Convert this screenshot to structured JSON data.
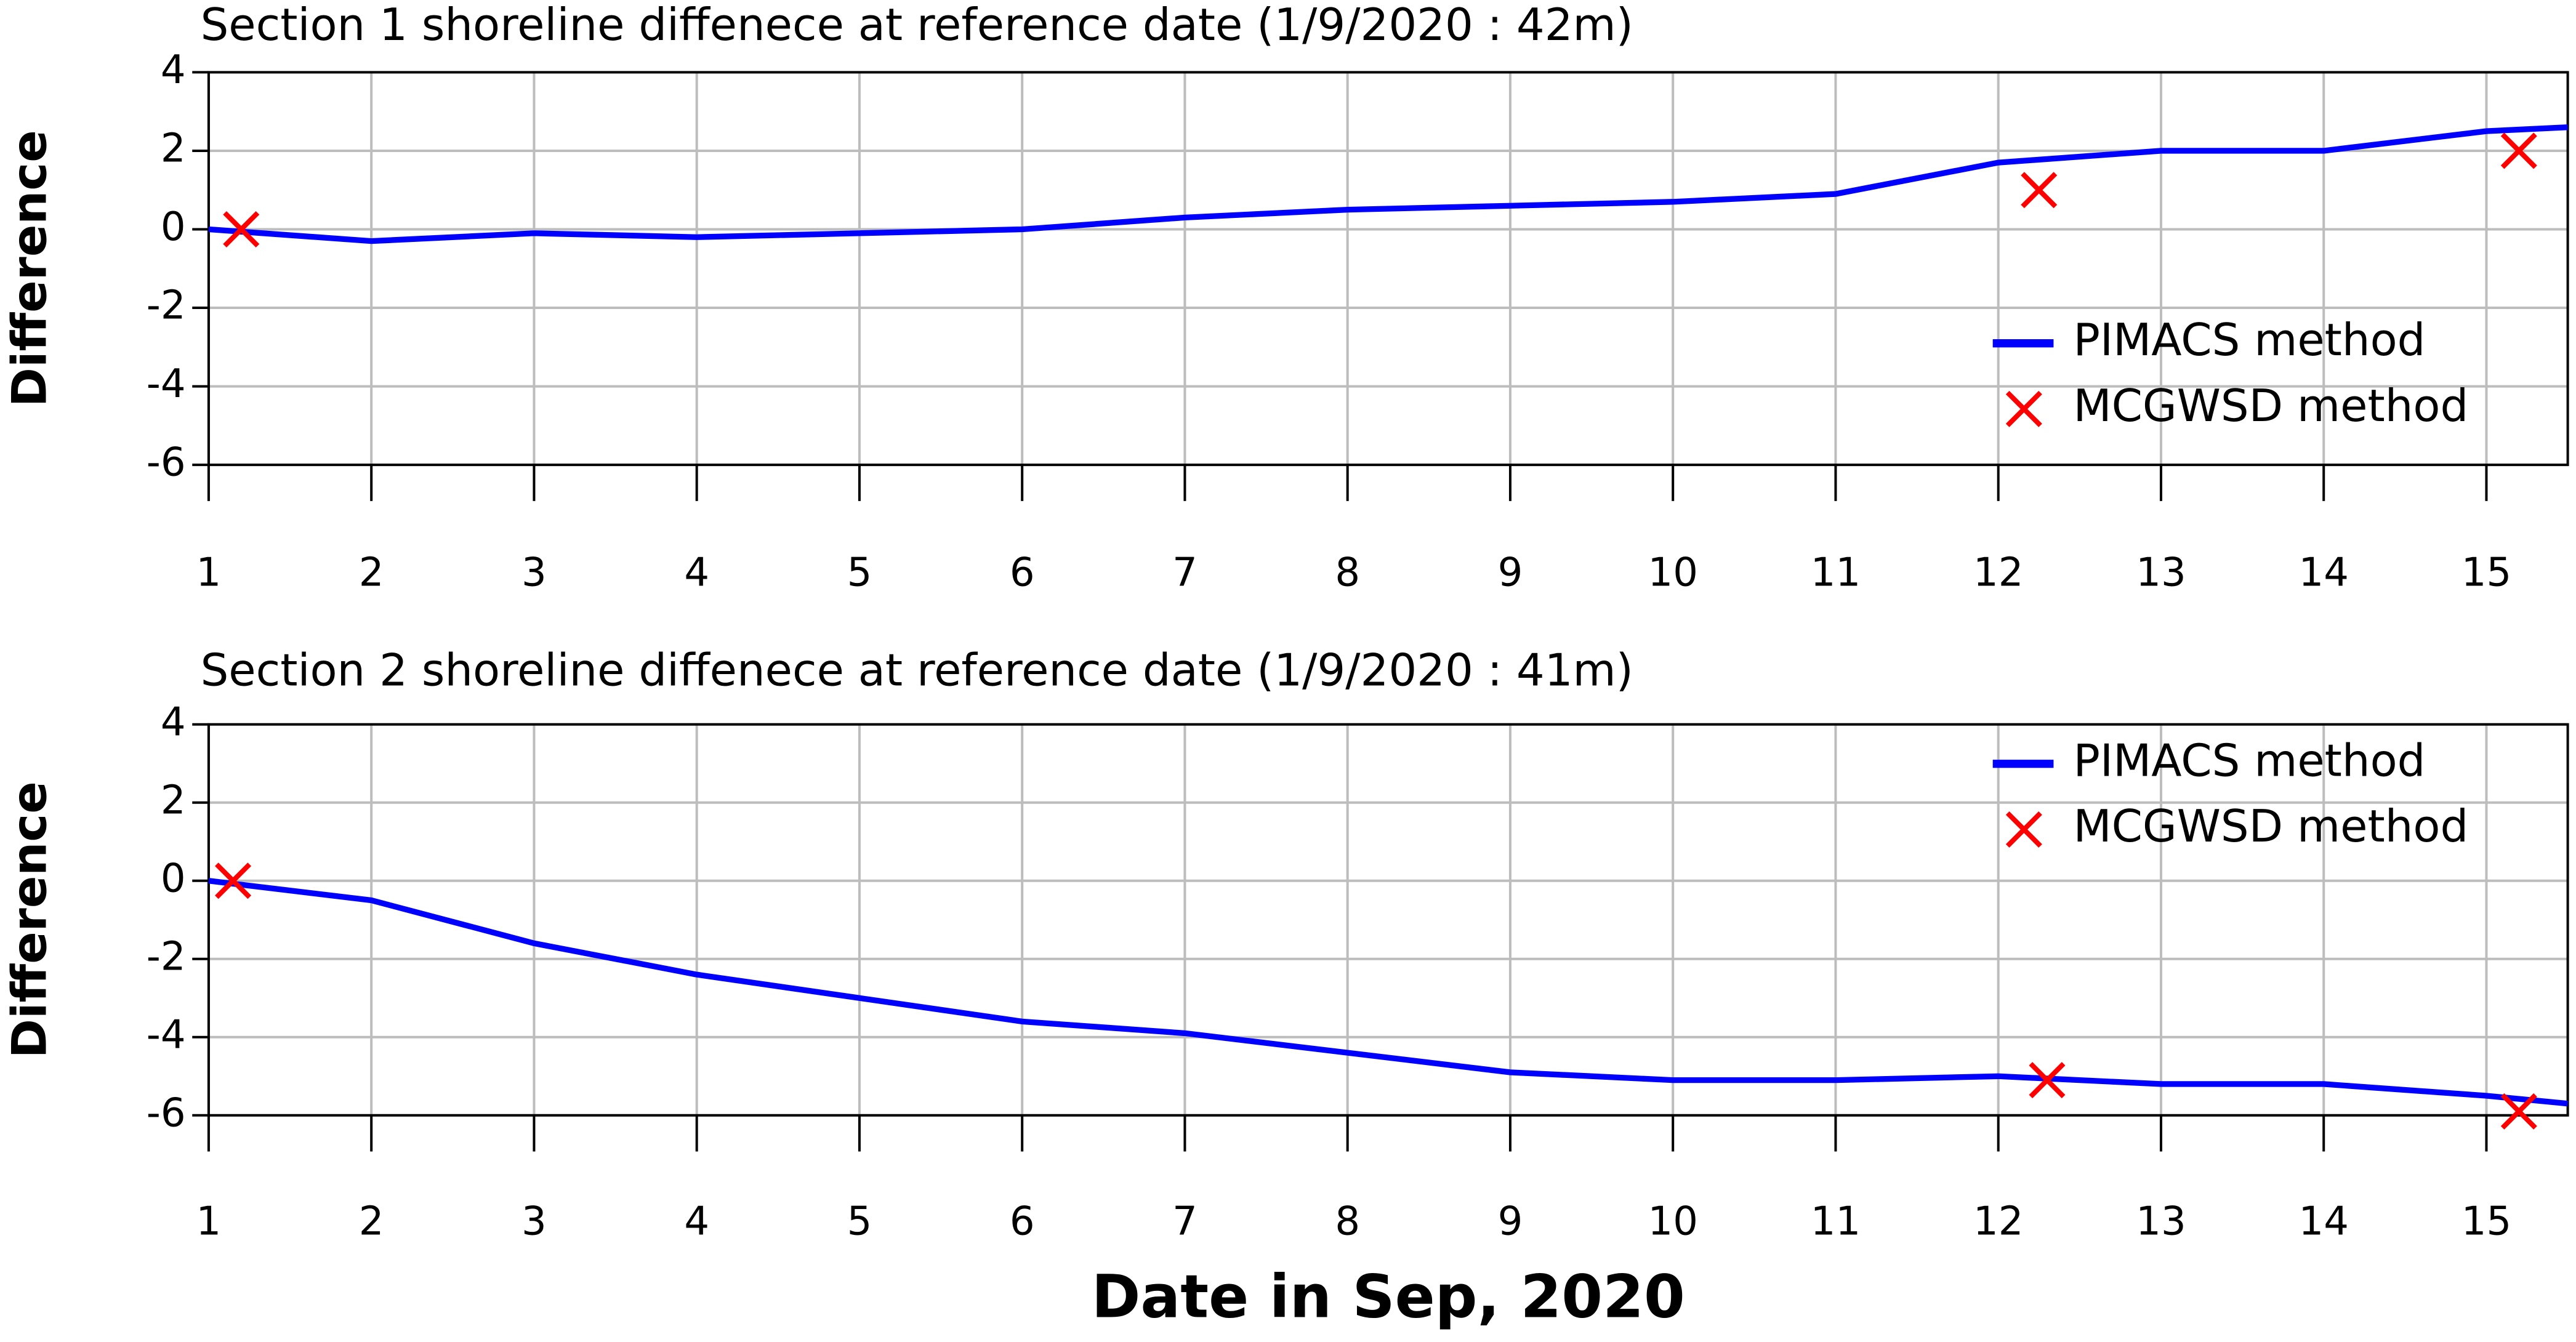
{
  "chart_data": [
    {
      "type": "line",
      "title": "Section 1 shoreline diffenece at reference date (1/9/2020 : 42m)",
      "y_label": "Difference",
      "xlim": [
        1,
        15.5
      ],
      "ylim": [
        -6,
        4
      ],
      "xticks": [
        1,
        2,
        3,
        4,
        5,
        6,
        7,
        8,
        9,
        10,
        11,
        12,
        13,
        14,
        15
      ],
      "yticks": [
        -6,
        -4,
        -2,
        0,
        2,
        4
      ],
      "grid": true,
      "legend": "lower right",
      "series": [
        {
          "name": "PIMACS method",
          "color": "#0000ff",
          "type": "line",
          "x": [
            1,
            2,
            3,
            4,
            5,
            6,
            7,
            8,
            9,
            10,
            11,
            12,
            13,
            14,
            15,
            15.5
          ],
          "values": [
            0,
            -0.3,
            -0.1,
            -0.2,
            -0.1,
            0,
            0.3,
            0.5,
            0.6,
            0.7,
            0.9,
            1.7,
            2.0,
            2.0,
            2.5,
            2.6
          ]
        },
        {
          "name": "MCGWSD method",
          "color": "#ff0000",
          "type": "scatter",
          "x": [
            1.2,
            12.25,
            15.2
          ],
          "values": [
            0,
            1,
            2
          ]
        }
      ]
    },
    {
      "type": "line",
      "title": "Section 2 shoreline diffenece at reference date (1/9/2020 : 41m)",
      "y_label": "Difference",
      "x_label": "Date in Sep, 2020",
      "xlim": [
        1,
        15.5
      ],
      "ylim": [
        -6,
        4
      ],
      "xticks": [
        1,
        2,
        3,
        4,
        5,
        6,
        7,
        8,
        9,
        10,
        11,
        12,
        13,
        14,
        15
      ],
      "yticks": [
        -6,
        -4,
        -2,
        0,
        2,
        4
      ],
      "grid": true,
      "legend": "upper right",
      "series": [
        {
          "name": "PIMACS method",
          "color": "#0000ff",
          "type": "line",
          "x": [
            1,
            2,
            3,
            4,
            5,
            6,
            7,
            8,
            9,
            10,
            11,
            12,
            13,
            14,
            15,
            15.5
          ],
          "values": [
            0,
            -0.5,
            -1.6,
            -2.4,
            -3.0,
            -3.6,
            -3.9,
            -4.4,
            -4.9,
            -5.1,
            -5.1,
            -5.0,
            -5.2,
            -5.2,
            -5.5,
            -5.7
          ]
        },
        {
          "name": "MCGWSD method",
          "color": "#ff0000",
          "type": "scatter",
          "x": [
            1.15,
            12.3,
            15.2
          ],
          "values": [
            0,
            -5.1,
            -5.9
          ]
        }
      ]
    }
  ]
}
